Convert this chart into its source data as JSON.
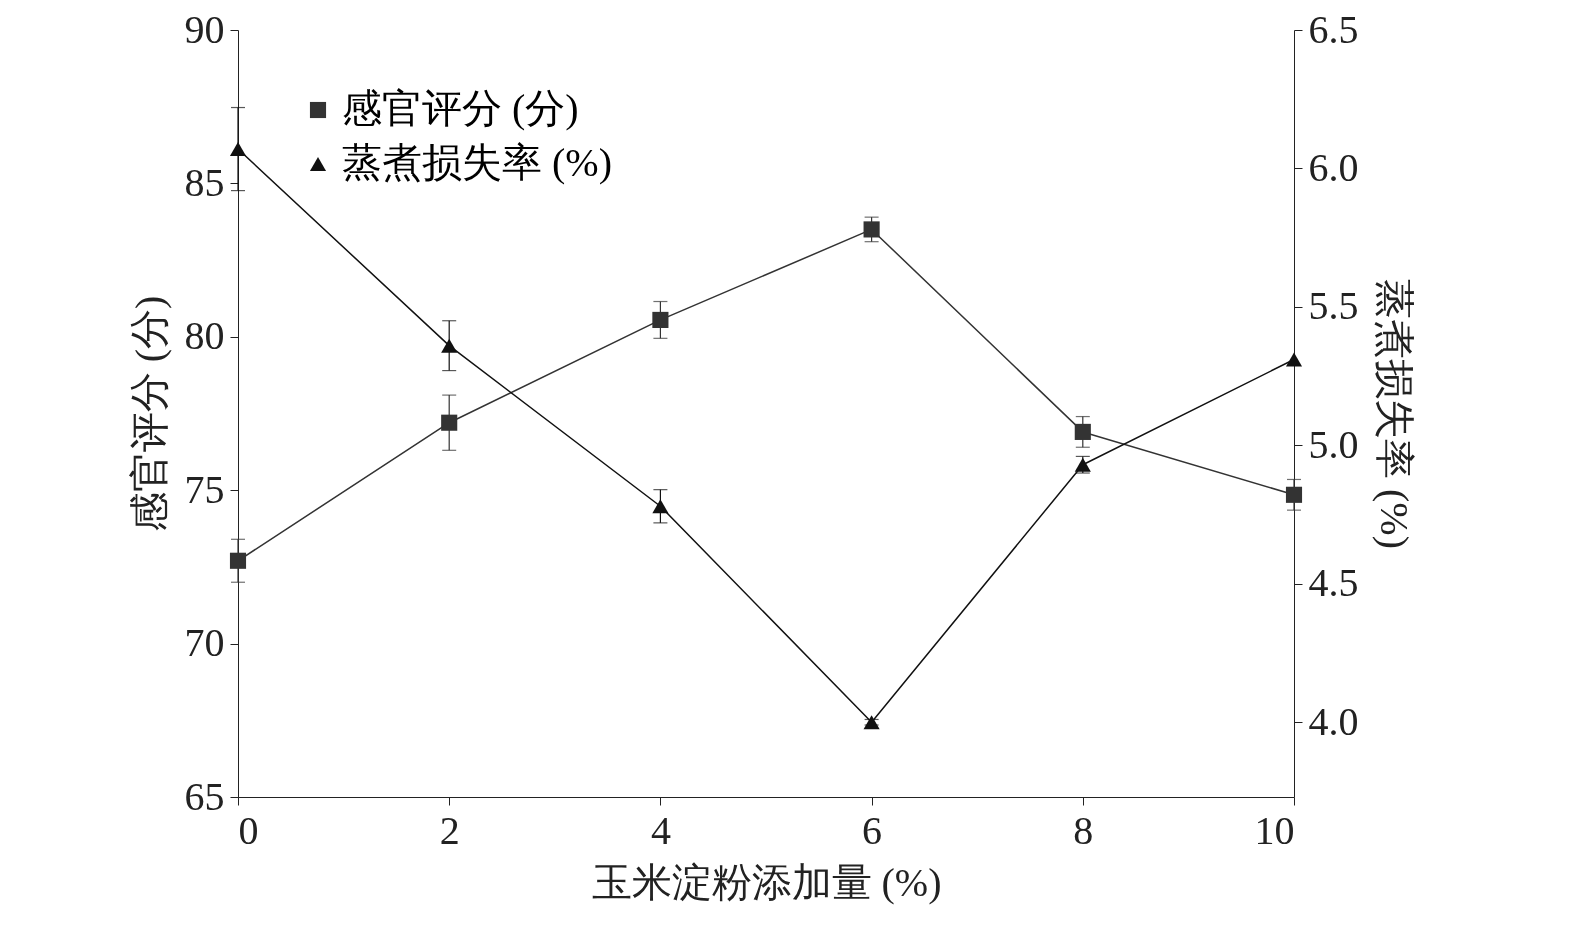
{
  "chart_data": {
    "type": "line",
    "xlabel": "玉米淀粉添加量 (%)",
    "ylabel": "感官评分 (分)",
    "y2label": "蒸煮损失率 (%)",
    "x": [
      0,
      2,
      4,
      6,
      8,
      10
    ],
    "xlim": [
      0,
      10
    ],
    "xticks": [
      0,
      2,
      4,
      6,
      8,
      10
    ],
    "ylim": [
      65,
      90
    ],
    "yticks": [
      65,
      70,
      75,
      80,
      85,
      90
    ],
    "y2lim": [
      3.73,
      6.5
    ],
    "y2ticks": [
      {
        "value": 4,
        "label": "4.0"
      },
      {
        "value": 4.5,
        "label": "4.5"
      },
      {
        "value": 5,
        "label": "5.0"
      },
      {
        "value": 5.5,
        "label": "5.5"
      },
      {
        "value": 6,
        "label": "6.0"
      },
      {
        "value": 6.5,
        "label": "6.5"
      }
    ],
    "legend": "top left",
    "grid": false,
    "series": [
      {
        "name": "感官评分 (分)",
        "color": "#333333",
        "marker": "square",
        "values": [
          72.7,
          77.2,
          80.55,
          83.5,
          76.9,
          74.85
        ],
        "errors": [
          0.7,
          0.9,
          0.6,
          0.4,
          0.5,
          0.5
        ]
      },
      {
        "name": "蒸煮损失率 (%)",
        "color": "#111111",
        "marker": "triangle",
        "axis": "y2",
        "values": [
          6.07,
          5.36,
          4.78,
          4.0,
          4.93,
          5.31
        ],
        "errors": [
          0.15,
          0.09,
          0.06,
          0.01,
          0.03,
          null
        ]
      }
    ]
  }
}
